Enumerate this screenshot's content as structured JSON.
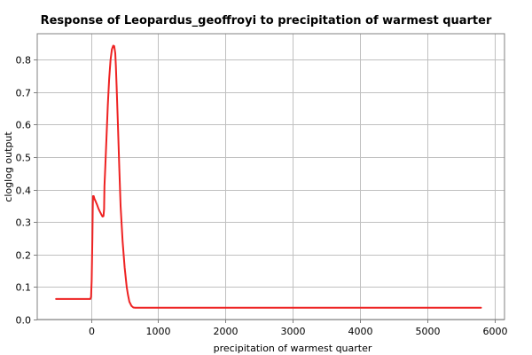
{
  "chart_data": {
    "type": "line",
    "title": "Response of Leopardus_geoffroyi to precipitation of warmest quarter",
    "xlabel": "precipitation of warmest quarter",
    "ylabel": "cloglog output",
    "xlim": [
      -800,
      6150
    ],
    "ylim": [
      0,
      0.88
    ],
    "x_ticks": [
      0,
      1000,
      2000,
      3000,
      4000,
      5000,
      6000
    ],
    "x_tick_labels": [
      "0",
      "1000",
      "2000",
      "3000",
      "4000",
      "5000",
      "6000"
    ],
    "y_ticks": [
      0.0,
      0.1,
      0.2,
      0.3,
      0.4,
      0.5,
      0.6,
      0.7,
      0.8
    ],
    "y_tick_labels": [
      "0.0",
      "0.1",
      "0.2",
      "0.3",
      "0.4",
      "0.5",
      "0.6",
      "0.7",
      "0.8"
    ],
    "grid": true,
    "series": [
      {
        "color": "#ee2222",
        "x": [
          -520,
          -300,
          -100,
          -10,
          0,
          10,
          20,
          25,
          30,
          40,
          50,
          70,
          90,
          110,
          130,
          150,
          170,
          185,
          195,
          200,
          210,
          230,
          250,
          270,
          290,
          310,
          330,
          345,
          360,
          370,
          380,
          400,
          420,
          440,
          470,
          500,
          530,
          550,
          570,
          600,
          630,
          660,
          700,
          800,
          1000,
          2000,
          3000,
          4000,
          5000,
          5800
        ],
        "y": [
          0.063,
          0.063,
          0.063,
          0.063,
          0.07,
          0.12,
          0.25,
          0.34,
          0.38,
          0.38,
          0.372,
          0.363,
          0.353,
          0.342,
          0.333,
          0.325,
          0.317,
          0.318,
          0.34,
          0.41,
          0.46,
          0.56,
          0.66,
          0.74,
          0.8,
          0.832,
          0.843,
          0.842,
          0.82,
          0.78,
          0.72,
          0.6,
          0.47,
          0.35,
          0.24,
          0.16,
          0.1,
          0.075,
          0.055,
          0.042,
          0.037,
          0.036,
          0.036,
          0.036,
          0.036,
          0.036,
          0.036,
          0.036,
          0.036,
          0.036
        ]
      }
    ]
  }
}
